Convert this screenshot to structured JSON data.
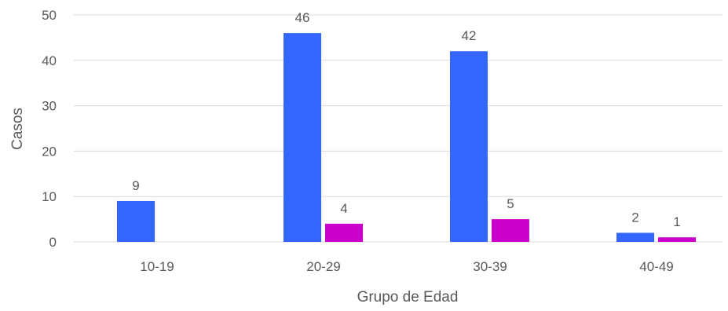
{
  "chart_data": {
    "type": "bar",
    "title": "",
    "xlabel": "Grupo de Edad",
    "ylabel": "Casos",
    "categories": [
      "10-19",
      "20-29",
      "30-39",
      "40-49"
    ],
    "series": [
      {
        "values": [
          9,
          46,
          42,
          2
        ],
        "color": "#3366ff",
        "labels": [
          "9",
          "46",
          "42",
          "2"
        ]
      },
      {
        "values": [
          0,
          4,
          5,
          1
        ],
        "color": "#cc00cc",
        "labels": [
          "",
          "4",
          "5",
          "1"
        ]
      }
    ],
    "ylim": [
      0,
      50
    ],
    "yticks": [
      0,
      10,
      20,
      30,
      40,
      50
    ],
    "grid": true,
    "legend": "none"
  }
}
